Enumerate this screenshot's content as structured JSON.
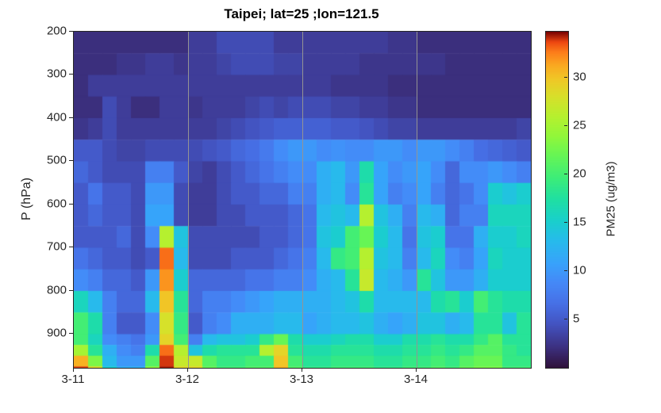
{
  "title": "Taipei; lat=25 ;lon=121.5",
  "axes": {
    "ylabel": "P (hPa)",
    "y_ticks": [
      200,
      300,
      400,
      500,
      600,
      700,
      800,
      900
    ],
    "x_tick_labels": [
      "3-11",
      "3-12",
      "3-13",
      "3-14"
    ],
    "x_tick_cols": [
      0,
      8,
      16,
      24
    ],
    "gridline_cols": [
      8,
      16,
      24
    ],
    "ylim": [
      200,
      978
    ],
    "gridline_color": "#949494",
    "axis_color": "#262626"
  },
  "colorbar": {
    "label": "PM25 (ug/m3)",
    "ticks": [
      5,
      10,
      15,
      20,
      25,
      30
    ],
    "min": 0,
    "max": 34.8,
    "colormap_name": "turbo",
    "stops": [
      [
        0.0,
        "#30123b"
      ],
      [
        0.06,
        "#3c3080"
      ],
      [
        0.13,
        "#4354c2"
      ],
      [
        0.19,
        "#4670e6"
      ],
      [
        0.25,
        "#4588f7"
      ],
      [
        0.31,
        "#38a2fb"
      ],
      [
        0.38,
        "#26bceb"
      ],
      [
        0.44,
        "#19d0ca"
      ],
      [
        0.5,
        "#1fdfa3"
      ],
      [
        0.56,
        "#3aec7c"
      ],
      [
        0.63,
        "#65f556"
      ],
      [
        0.69,
        "#92f73a"
      ],
      [
        0.75,
        "#b7f02e"
      ],
      [
        0.81,
        "#d9df2a"
      ],
      [
        0.86,
        "#f0c726"
      ],
      [
        0.9,
        "#faaa21"
      ],
      [
        0.94,
        "#fc7d1a"
      ],
      [
        0.97,
        "#ee4711"
      ],
      [
        1.0,
        "#7a0403"
      ]
    ]
  },
  "chart_data": {
    "type": "heatmap",
    "title": "Taipei; lat=25 ;lon=121.5",
    "xlabel": "",
    "ylabel": "P (hPa)",
    "value_label": "PM25 (ug/m3)",
    "clim": [
      0,
      34.8
    ],
    "time_step_hours": 3,
    "time_start": "3-11 00h",
    "columns": 32,
    "pressure_edges": [
      200,
      250,
      300,
      350,
      400,
      450,
      500,
      550,
      600,
      650,
      700,
      750,
      800,
      850,
      900,
      925,
      950,
      975,
      1000
    ],
    "values": [
      [
        2,
        2,
        2,
        2,
        2,
        2,
        2,
        2,
        3,
        3,
        4,
        4,
        4,
        4,
        3,
        3,
        3,
        3,
        3,
        3,
        3,
        3,
        2.5,
        2.5,
        2,
        2,
        2,
        2,
        2,
        2,
        2,
        2
      ],
      [
        2,
        2,
        2,
        2.5,
        2.5,
        3,
        3,
        2.5,
        3,
        3,
        3.5,
        4,
        4,
        4,
        3.5,
        3.5,
        3,
        3,
        3,
        3,
        2.5,
        2.5,
        2.5,
        2.5,
        2.5,
        2.5,
        2,
        2,
        2,
        2,
        2,
        2
      ],
      [
        2,
        3,
        3,
        3,
        3,
        3,
        3,
        3,
        3,
        3,
        3,
        3,
        3,
        3,
        3,
        3,
        3,
        3,
        2.5,
        2.5,
        2.5,
        2.5,
        2,
        2,
        2,
        2,
        2,
        2,
        2,
        2,
        2,
        2
      ],
      [
        2,
        2,
        4,
        3,
        2,
        2,
        3,
        3,
        2.5,
        3,
        3,
        3,
        3.5,
        4,
        3.5,
        4,
        4,
        4,
        3.5,
        3.5,
        3,
        3,
        2.5,
        2.5,
        2,
        2,
        2,
        2,
        2,
        2,
        2,
        2
      ],
      [
        2.5,
        3,
        4,
        3,
        3,
        3,
        3,
        3,
        3,
        3,
        3.5,
        4,
        4.5,
        5,
        5.5,
        5.5,
        5.5,
        5.5,
        5,
        5,
        4.5,
        4,
        3.5,
        3.5,
        3,
        3,
        3,
        3,
        3,
        3,
        3,
        3.5
      ],
      [
        5,
        5,
        4,
        3.5,
        3.5,
        4,
        4,
        4,
        4,
        4.5,
        5,
        6,
        6.5,
        7.5,
        9,
        10,
        10,
        9,
        9.5,
        9,
        9,
        10,
        10,
        9,
        10,
        10,
        9,
        8,
        6.5,
        6,
        5.5,
        5
      ],
      [
        6,
        5,
        4,
        4,
        4,
        8,
        8,
        5,
        3.5,
        3,
        4,
        5,
        6,
        7,
        8,
        9,
        9,
        12,
        13,
        10,
        17,
        11,
        9,
        10,
        11,
        9,
        6,
        9,
        9,
        10,
        9,
        8
      ],
      [
        5,
        7,
        5,
        5,
        4,
        10,
        10,
        4,
        3,
        3,
        4,
        5,
        5,
        6,
        6,
        8,
        8,
        12,
        13,
        9,
        18,
        11,
        8,
        9,
        11,
        8,
        6,
        7,
        9,
        15,
        14,
        15
      ],
      [
        5,
        6,
        5,
        5,
        4,
        11,
        11,
        4,
        3,
        3,
        4,
        4,
        5,
        5,
        5,
        6,
        7,
        13,
        14,
        13,
        26,
        14,
        12,
        8,
        13,
        12,
        6,
        8,
        8,
        16,
        16,
        16
      ],
      [
        5,
        5,
        5,
        6,
        4,
        9,
        26,
        14,
        4,
        4,
        4,
        4,
        4,
        5,
        5,
        6,
        7,
        14,
        15,
        20,
        22,
        15,
        13,
        7,
        14,
        15,
        7,
        7,
        12,
        15,
        15,
        16
      ],
      [
        7,
        6,
        5,
        5,
        4,
        5,
        33,
        13,
        4,
        4,
        4,
        5,
        5,
        5,
        6,
        7,
        8,
        13,
        19,
        20,
        26,
        14,
        13,
        8,
        13,
        16,
        9,
        8,
        11,
        16,
        15,
        15
      ],
      [
        9,
        8,
        6,
        6,
        5,
        10,
        32,
        15,
        6,
        6,
        6,
        6,
        7,
        7,
        8,
        8,
        9,
        12,
        13,
        18,
        27,
        13,
        12,
        10,
        18,
        14,
        10,
        10,
        12,
        15,
        15,
        15
      ],
      [
        16,
        13,
        8,
        6,
        6,
        13,
        30,
        18,
        6,
        8,
        8,
        9,
        10,
        11,
        12,
        12,
        12,
        12,
        13,
        14,
        17,
        13,
        13,
        13,
        13,
        17,
        18,
        15,
        20,
        18,
        17,
        17
      ],
      [
        20,
        17,
        8,
        5,
        5,
        9,
        28,
        19,
        5,
        8,
        9,
        12,
        12,
        12,
        13,
        13,
        11,
        12,
        13,
        13,
        14,
        12,
        11,
        12,
        14,
        14,
        12,
        13,
        18,
        18,
        14,
        18
      ],
      [
        20,
        16,
        9,
        8,
        7,
        10,
        29,
        20,
        8,
        13,
        14,
        14,
        15,
        19,
        22,
        17,
        15,
        15,
        16,
        17,
        17,
        15,
        15,
        17,
        17,
        18,
        17,
        17,
        19,
        21,
        18,
        18
      ],
      [
        25,
        18,
        12,
        9,
        8,
        17,
        33,
        26,
        14,
        17,
        18,
        18,
        18,
        26,
        29,
        18,
        17,
        17,
        18,
        18,
        18,
        17,
        17,
        18,
        18,
        19,
        18,
        19,
        21,
        21,
        19,
        18
      ],
      [
        31,
        23,
        13,
        10,
        10,
        21,
        34,
        27,
        27,
        21,
        19,
        19,
        20,
        20,
        30,
        20,
        18,
        18,
        19,
        19,
        19,
        18,
        18,
        19,
        19,
        20,
        19,
        21,
        22,
        22,
        19,
        19
      ],
      [
        34,
        29,
        15,
        12,
        12,
        24,
        34.5,
        29,
        29,
        22,
        20,
        20,
        21,
        21,
        31,
        21,
        19,
        19,
        20,
        20,
        20,
        19,
        19,
        20,
        20,
        21,
        20,
        22,
        23,
        23,
        20,
        20
      ]
    ]
  }
}
